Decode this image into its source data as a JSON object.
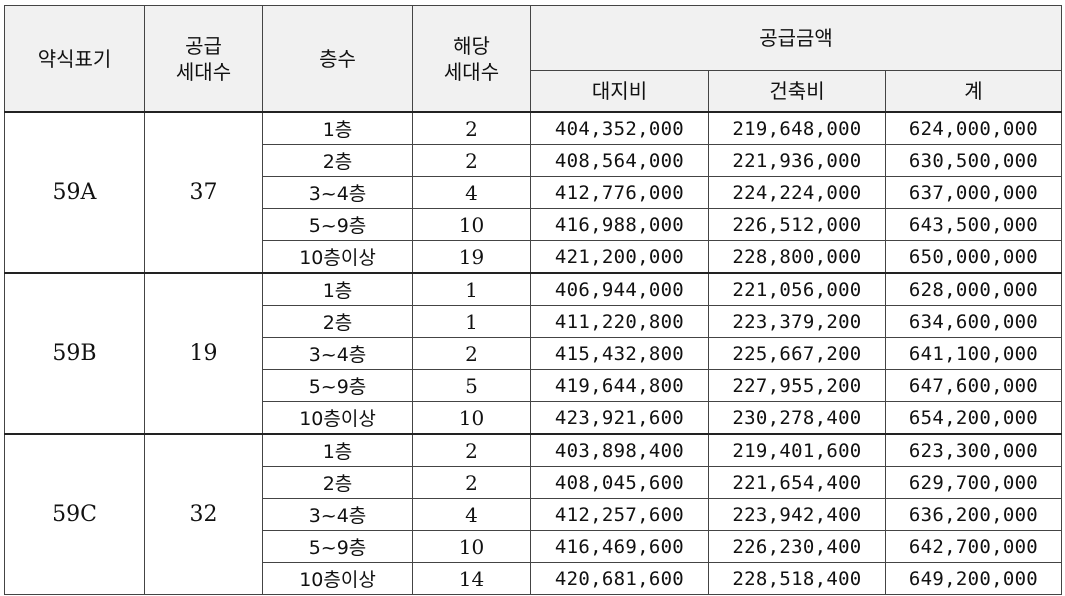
{
  "headers": {
    "code": "약식표기",
    "supply_units_l1": "공급",
    "supply_units_l2": "세대수",
    "floor": "층수",
    "units_l1": "해당",
    "units_l2": "세대수",
    "amount_group": "공급금액",
    "land": "대지비",
    "building": "건축비",
    "total": "계"
  },
  "groups": [
    {
      "code": "59A",
      "supply_units": "37",
      "rows": [
        {
          "floor": "1층",
          "units": "2",
          "land": "404,352,000",
          "building": "219,648,000",
          "total": "624,000,000"
        },
        {
          "floor": "2층",
          "units": "2",
          "land": "408,564,000",
          "building": "221,936,000",
          "total": "630,500,000"
        },
        {
          "floor": "3~4층",
          "units": "4",
          "land": "412,776,000",
          "building": "224,224,000",
          "total": "637,000,000"
        },
        {
          "floor": "5~9층",
          "units": "10",
          "land": "416,988,000",
          "building": "226,512,000",
          "total": "643,500,000"
        },
        {
          "floor": "10층이상",
          "units": "19",
          "land": "421,200,000",
          "building": "228,800,000",
          "total": "650,000,000"
        }
      ]
    },
    {
      "code": "59B",
      "supply_units": "19",
      "rows": [
        {
          "floor": "1층",
          "units": "1",
          "land": "406,944,000",
          "building": "221,056,000",
          "total": "628,000,000"
        },
        {
          "floor": "2층",
          "units": "1",
          "land": "411,220,800",
          "building": "223,379,200",
          "total": "634,600,000"
        },
        {
          "floor": "3~4층",
          "units": "2",
          "land": "415,432,800",
          "building": "225,667,200",
          "total": "641,100,000"
        },
        {
          "floor": "5~9층",
          "units": "5",
          "land": "419,644,800",
          "building": "227,955,200",
          "total": "647,600,000"
        },
        {
          "floor": "10층이상",
          "units": "10",
          "land": "423,921,600",
          "building": "230,278,400",
          "total": "654,200,000"
        }
      ]
    },
    {
      "code": "59C",
      "supply_units": "32",
      "rows": [
        {
          "floor": "1층",
          "units": "2",
          "land": "403,898,400",
          "building": "219,401,600",
          "total": "623,300,000"
        },
        {
          "floor": "2층",
          "units": "2",
          "land": "408,045,600",
          "building": "221,654,400",
          "total": "629,700,000"
        },
        {
          "floor": "3~4층",
          "units": "4",
          "land": "412,257,600",
          "building": "223,942,400",
          "total": "636,200,000"
        },
        {
          "floor": "5~9층",
          "units": "10",
          "land": "416,469,600",
          "building": "226,230,400",
          "total": "642,700,000"
        },
        {
          "floor": "10층이상",
          "units": "14",
          "land": "420,681,600",
          "building": "228,518,400",
          "total": "649,200,000"
        }
      ]
    }
  ]
}
